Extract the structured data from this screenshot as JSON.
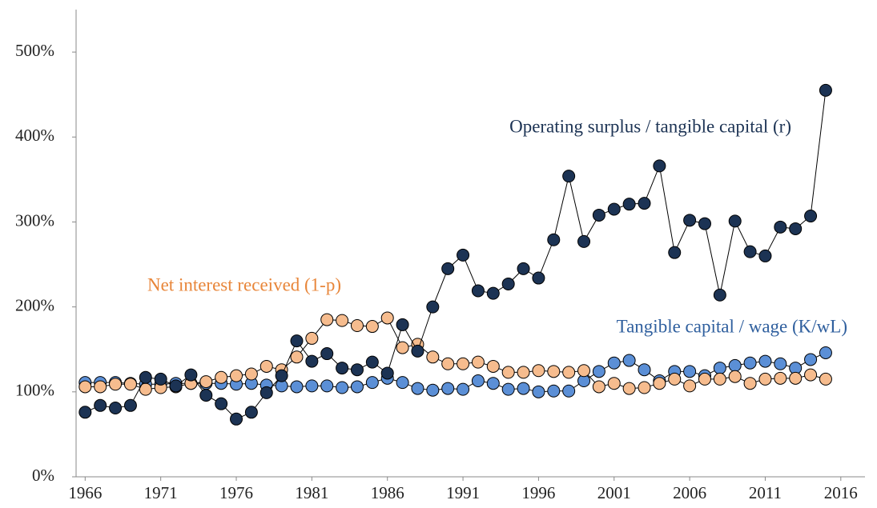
{
  "chart_data": {
    "type": "line",
    "x": [
      1966,
      1967,
      1968,
      1969,
      1970,
      1971,
      1972,
      1973,
      1974,
      1975,
      1976,
      1977,
      1978,
      1979,
      1980,
      1981,
      1982,
      1983,
      1984,
      1985,
      1986,
      1987,
      1988,
      1989,
      1990,
      1991,
      1992,
      1993,
      1994,
      1995,
      1996,
      1997,
      1998,
      1999,
      2000,
      2001,
      2002,
      2003,
      2004,
      2005,
      2006,
      2007,
      2008,
      2009,
      2010,
      2011,
      2012,
      2013,
      2014,
      2015
    ],
    "series": [
      {
        "name": "Tangible capital / wage (K/wL)",
        "color": "#5b8fd6",
        "values": [
          111,
          111,
          111,
          110,
          109,
          109,
          110,
          110,
          110,
          110,
          109,
          110,
          108,
          107,
          106,
          107,
          107,
          105,
          106,
          111,
          116,
          111,
          104,
          102,
          104,
          103,
          113,
          110,
          103,
          104,
          100,
          101,
          101,
          113,
          124,
          134,
          137,
          126,
          113,
          124,
          124,
          119,
          128,
          131,
          134,
          136,
          133,
          128,
          138,
          146
        ]
      },
      {
        "name": "Net interest received (1-p)",
        "color": "#f6bc8e",
        "values": [
          106,
          106,
          109,
          109,
          103,
          105,
          106,
          110,
          112,
          117,
          119,
          121,
          130,
          126,
          141,
          163,
          185,
          184,
          178,
          177,
          187,
          152,
          156,
          141,
          133,
          133,
          135,
          130,
          123,
          123,
          125,
          124,
          123,
          125,
          106,
          110,
          104,
          105,
          110,
          115,
          107,
          115,
          115,
          118,
          110,
          115,
          116,
          116,
          120,
          115
        ]
      },
      {
        "name": "Operating surplus / tangible capital (r)",
        "color": "#1c3354",
        "values": [
          76,
          84,
          81,
          84,
          117,
          115,
          107,
          120,
          96,
          86,
          68,
          76,
          99,
          119,
          160,
          136,
          145,
          128,
          126,
          135,
          122,
          179,
          148,
          200,
          245,
          261,
          219,
          216,
          227,
          245,
          234,
          279,
          354,
          277,
          308,
          315,
          321,
          322,
          366,
          264,
          302,
          298,
          214,
          301,
          265,
          260,
          294,
          292,
          307,
          455
        ]
      }
    ],
    "xlim": [
      1965.4,
      2017.6
    ],
    "xticks": [
      1966,
      1971,
      1976,
      1981,
      1986,
      1991,
      1996,
      2001,
      2006,
      2011,
      2016
    ],
    "ylim": [
      0,
      550
    ],
    "yticks": [
      {
        "value": 0,
        "label": "0%"
      },
      {
        "value": 100,
        "label": "100%"
      },
      {
        "value": 200,
        "label": "200%"
      },
      {
        "value": 300,
        "label": "300%"
      },
      {
        "value": 400,
        "label": "400%"
      },
      {
        "value": 500,
        "label": "500%"
      }
    ],
    "grid": false
  }
}
